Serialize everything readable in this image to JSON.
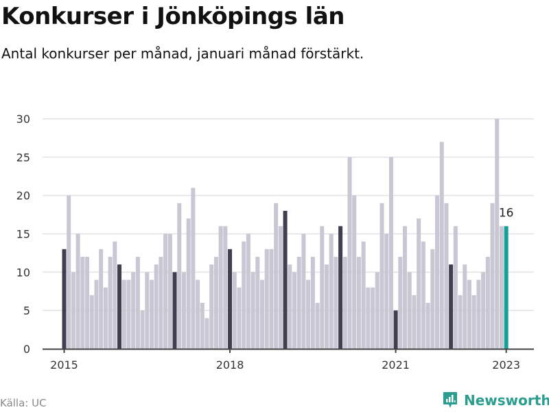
{
  "header": {
    "title": "Konkurser i Jönköpings län",
    "subtitle": "Antal konkurser per månad, januari månad förstärkt."
  },
  "footer": {
    "source": "Källa: UC",
    "brand": "Newsworthy"
  },
  "colors": {
    "bar_default": "#c8c7d3",
    "bar_january": "#403e4f",
    "bar_latest": "#15a199",
    "grid": "#e2e2e2",
    "axis": "#444444",
    "brand": "#2a9d8f"
  },
  "chart_data": {
    "type": "bar",
    "title": "Konkurser i Jönköpings län",
    "subtitle": "Antal konkurser per månad, januari månad förstärkt.",
    "xlabel": "",
    "ylabel": "",
    "ylim": [
      0,
      30
    ],
    "yticks": [
      0,
      5,
      10,
      15,
      20,
      25,
      30
    ],
    "xtick_labels": [
      {
        "label": "2015",
        "index": 0
      },
      {
        "label": "2018",
        "index": 36
      },
      {
        "label": "2021",
        "index": 72
      },
      {
        "label": "2023",
        "index": 96
      }
    ],
    "grid": true,
    "legend": null,
    "start": "2015-01",
    "annotation": {
      "index": 96,
      "text": "16"
    },
    "values": [
      13,
      20,
      10,
      15,
      12,
      12,
      7,
      9,
      13,
      8,
      12,
      14,
      11,
      9,
      9,
      10,
      12,
      5,
      10,
      9,
      11,
      12,
      15,
      15,
      10,
      19,
      10,
      17,
      21,
      9,
      6,
      4,
      11,
      12,
      16,
      16,
      13,
      10,
      8,
      14,
      15,
      10,
      12,
      9,
      13,
      13,
      19,
      16,
      18,
      11,
      10,
      12,
      15,
      9,
      12,
      6,
      16,
      11,
      15,
      12,
      16,
      12,
      25,
      20,
      12,
      14,
      8,
      8,
      10,
      19,
      15,
      25,
      5,
      12,
      16,
      10,
      7,
      17,
      14,
      6,
      13,
      20,
      27,
      19,
      11,
      16,
      7,
      11,
      9,
      7,
      9,
      10,
      12,
      19,
      30,
      16,
      16
    ]
  }
}
